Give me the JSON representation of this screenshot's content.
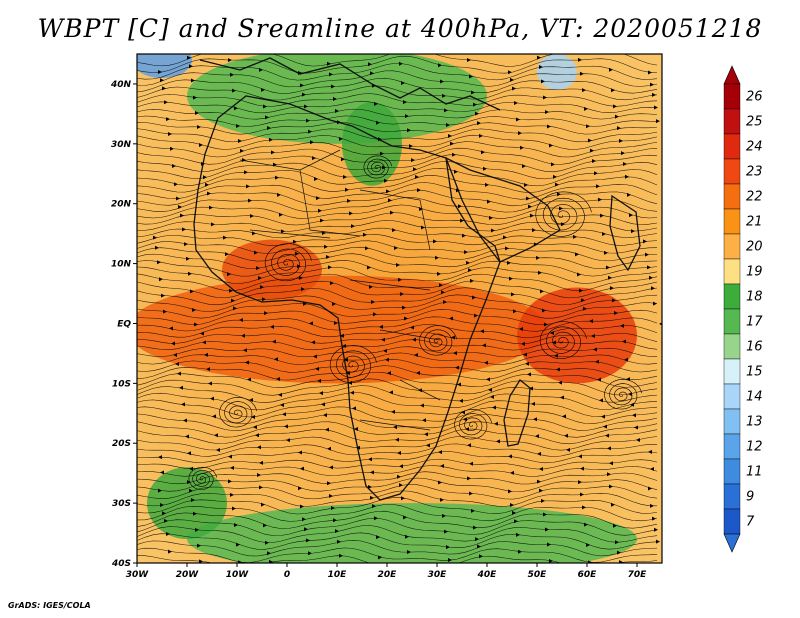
{
  "title": "WBPT [C] and Sreamline at 400hPa, VT: 2020051218",
  "credit": "GrADS: IGES/COLA",
  "map": {
    "lon_range": [
      -30,
      75
    ],
    "lat_range": [
      -40,
      45
    ],
    "lon_ticks": [
      {
        "value": -30,
        "label": "30W"
      },
      {
        "value": -20,
        "label": "20W"
      },
      {
        "value": -10,
        "label": "10W"
      },
      {
        "value": 0,
        "label": "0"
      },
      {
        "value": 10,
        "label": "10E"
      },
      {
        "value": 20,
        "label": "20E"
      },
      {
        "value": 30,
        "label": "30E"
      },
      {
        "value": 40,
        "label": "40E"
      },
      {
        "value": 50,
        "label": "50E"
      },
      {
        "value": 60,
        "label": "60E"
      },
      {
        "value": 70,
        "label": "70E"
      }
    ],
    "lat_ticks": [
      {
        "value": 40,
        "label": "40N"
      },
      {
        "value": 30,
        "label": "30N"
      },
      {
        "value": 20,
        "label": "20N"
      },
      {
        "value": 10,
        "label": "10N"
      },
      {
        "value": 0,
        "label": "EQ"
      },
      {
        "value": -10,
        "label": "10S"
      },
      {
        "value": -20,
        "label": "20S"
      },
      {
        "value": -30,
        "label": "30S"
      },
      {
        "value": -40,
        "label": "40S"
      }
    ],
    "field_regions": [
      {
        "name": "warm-core-equatorial",
        "lon": 10,
        "lat": -1,
        "rlon": 42,
        "rlat": 9,
        "color": "#f06010"
      },
      {
        "name": "warm-core-sahel",
        "lon": -3,
        "lat": 9,
        "rlon": 10,
        "rlat": 5,
        "color": "#e84c0e"
      },
      {
        "name": "warm-core-indian-ocean",
        "lon": 58,
        "lat": -2,
        "rlon": 12,
        "rlat": 8,
        "color": "#e83c0c"
      },
      {
        "name": "green-north-africa",
        "lon": 10,
        "lat": 38,
        "rlon": 30,
        "rlat": 8,
        "color": "#52b850"
      },
      {
        "name": "green-cyclone",
        "lon": 17,
        "lat": 30,
        "rlon": 6,
        "rlat": 7,
        "color": "#3ea83c"
      },
      {
        "name": "green-southern-ocean",
        "lon": 25,
        "lat": -36,
        "rlon": 45,
        "rlat": 6,
        "color": "#54b852"
      },
      {
        "name": "green-south-atlantic",
        "lon": -20,
        "lat": -30,
        "rlon": 8,
        "rlat": 6,
        "color": "#40aa3e"
      },
      {
        "name": "cold-northwest",
        "lon": -25,
        "lat": 44,
        "rlon": 6,
        "rlat": 3,
        "color": "#5f9fe6"
      },
      {
        "name": "cold-northeast",
        "lon": 54,
        "lat": 42,
        "rlon": 4,
        "rlat": 3,
        "color": "#a8d4f5"
      }
    ],
    "vortices": [
      {
        "lon": 0,
        "lat": 10,
        "r": 5
      },
      {
        "lon": 18,
        "lat": 26,
        "r": 3
      },
      {
        "lon": 55,
        "lat": 18,
        "r": 6
      },
      {
        "lon": 55,
        "lat": -3,
        "r": 5
      },
      {
        "lon": 30,
        "lat": -3,
        "r": 4
      },
      {
        "lon": 13,
        "lat": -7,
        "r": 5
      },
      {
        "lon": -10,
        "lat": -15,
        "r": 4
      },
      {
        "lon": -17,
        "lat": -26,
        "r": 3
      },
      {
        "lon": 37,
        "lat": -17,
        "r": 4
      },
      {
        "lon": 67,
        "lat": -12,
        "r": 4
      }
    ]
  },
  "colorbar": {
    "levels": [
      {
        "label": "26",
        "color": "#a50008"
      },
      {
        "label": "25",
        "color": "#c01010"
      },
      {
        "label": "24",
        "color": "#e02a0f"
      },
      {
        "label": "23",
        "color": "#f04812"
      },
      {
        "label": "22",
        "color": "#f56f10"
      },
      {
        "label": "21",
        "color": "#fa9215"
      },
      {
        "label": "20",
        "color": "#fcb045"
      },
      {
        "label": "19",
        "color": "#fde081"
      },
      {
        "label": "18",
        "color": "#3cad3b"
      },
      {
        "label": "17",
        "color": "#56b850"
      },
      {
        "label": "16",
        "color": "#98d58c"
      },
      {
        "label": "15",
        "color": "#d7f1f9"
      },
      {
        "label": "14",
        "color": "#a8d5f8"
      },
      {
        "label": "13",
        "color": "#80c0f2"
      },
      {
        "label": "12",
        "color": "#5aa5ea"
      },
      {
        "label": "11",
        "color": "#3f8be0"
      },
      {
        "label": "9",
        "color": "#2a70d6"
      },
      {
        "label": "7",
        "color": "#1d58c8"
      }
    ],
    "top_arrow_color": "#a50008",
    "bottom_arrow_color": "#2a70d6"
  }
}
